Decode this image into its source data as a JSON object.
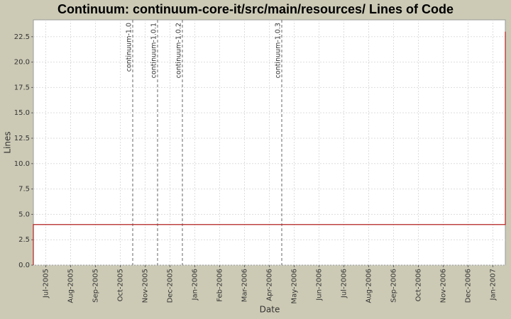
{
  "chart_data": {
    "type": "line",
    "title": "Continuum: continuum-core-it/src/main/resources/ Lines of Code",
    "xlabel": "Date",
    "ylabel": "Lines",
    "x": [
      "2005-06",
      "2005-06",
      "2007-01",
      "2007-01"
    ],
    "series": [
      {
        "color": "#b22222",
        "values": [
          0,
          4,
          4,
          23
        ]
      }
    ],
    "xlim": [
      "2005-06",
      "2007-01"
    ],
    "xticks": [
      {
        "value": "2005-07",
        "label": "Jul-2005"
      },
      {
        "value": "2005-08",
        "label": "Aug-2005"
      },
      {
        "value": "2005-09",
        "label": "Sep-2005"
      },
      {
        "value": "2005-10",
        "label": "Oct-2005"
      },
      {
        "value": "2005-11",
        "label": "Nov-2005"
      },
      {
        "value": "2005-12",
        "label": "Dec-2005"
      },
      {
        "value": "2006-01",
        "label": "Jan-2006"
      },
      {
        "value": "2006-02",
        "label": "Feb-2006"
      },
      {
        "value": "2006-03",
        "label": "Mar-2006"
      },
      {
        "value": "2006-04",
        "label": "Apr-2006"
      },
      {
        "value": "2006-05",
        "label": "May-2006"
      },
      {
        "value": "2006-06",
        "label": "Jun-2006"
      },
      {
        "value": "2006-07",
        "label": "Jul-2006"
      },
      {
        "value": "2006-08",
        "label": "Aug-2006"
      },
      {
        "value": "2006-09",
        "label": "Sep-2006"
      },
      {
        "value": "2006-10",
        "label": "Oct-2006"
      },
      {
        "value": "2006-11",
        "label": "Nov-2006"
      },
      {
        "value": "2006-12",
        "label": "Dec-2006"
      },
      {
        "value": "2007-01",
        "label": "Jan-2007"
      }
    ],
    "ylim": [
      0,
      24.16
    ],
    "yticks": [
      {
        "value": 0,
        "label": "0.0"
      },
      2.5,
      {
        "value": 5,
        "label": "5.0"
      },
      7.5,
      {
        "value": 10,
        "label": "10.0"
      },
      12.5,
      {
        "value": 15,
        "label": "15.0"
      },
      17.5,
      {
        "value": 20,
        "label": "20.0"
      },
      22.5
    ],
    "grid": true,
    "markers": [
      {
        "label": "continuum-1.0",
        "x": "2005-10"
      },
      {
        "label": "continuum-1.0.1",
        "x": "2005-11"
      },
      {
        "label": "continuum-1.0.2",
        "x": "2005-12"
      },
      {
        "label": "continuum-1.0.3",
        "x": "2006-04"
      }
    ]
  }
}
